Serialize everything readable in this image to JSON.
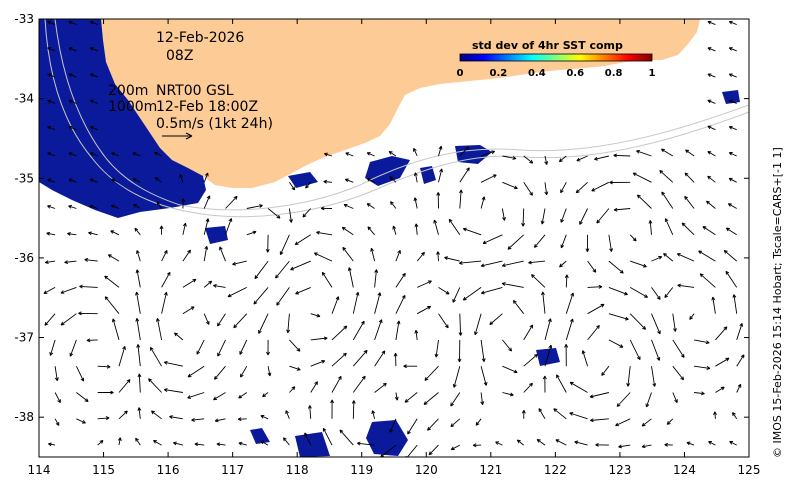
{
  "map": {
    "date_label": "12-Feb-2026",
    "time_label": "08Z",
    "isobath_200": "200m",
    "isobath_1000": "1000m",
    "product_label": "NRT00 GSL",
    "product_time": "12-Feb 18:00Z",
    "scale_label": "0.5m/s (1kt 24h)",
    "side_caption": "© IMOS 15-Feb-2026 15:14 Hobart; Tscale=CARS+[-1 1]",
    "colorbar": {
      "title": "std dev of 4hr SST comp",
      "ticks": [
        "0",
        "0.2",
        "0.4",
        "0.6",
        "0.8",
        "1"
      ],
      "colors": [
        "#00007f",
        "#0000ff",
        "#007fff",
        "#00ffff",
        "#7fff7f",
        "#ffff00",
        "#ff7f00",
        "#ff0000",
        "#7f0000"
      ]
    },
    "colors": {
      "land": "#fccb96",
      "field_low": "#0a1a9a",
      "isobath": "#c8c8c8",
      "arrow": "#000000"
    },
    "lon_ticks": [
      "114",
      "115",
      "116",
      "117",
      "118",
      "119",
      "120",
      "121",
      "122",
      "123",
      "124",
      "125"
    ],
    "lat_ticks": [
      "-33",
      "-34",
      "-35",
      "-36",
      "-37",
      "-38"
    ],
    "lon_range": [
      114,
      125
    ],
    "lat_range": [
      -38.5,
      -33
    ]
  }
}
